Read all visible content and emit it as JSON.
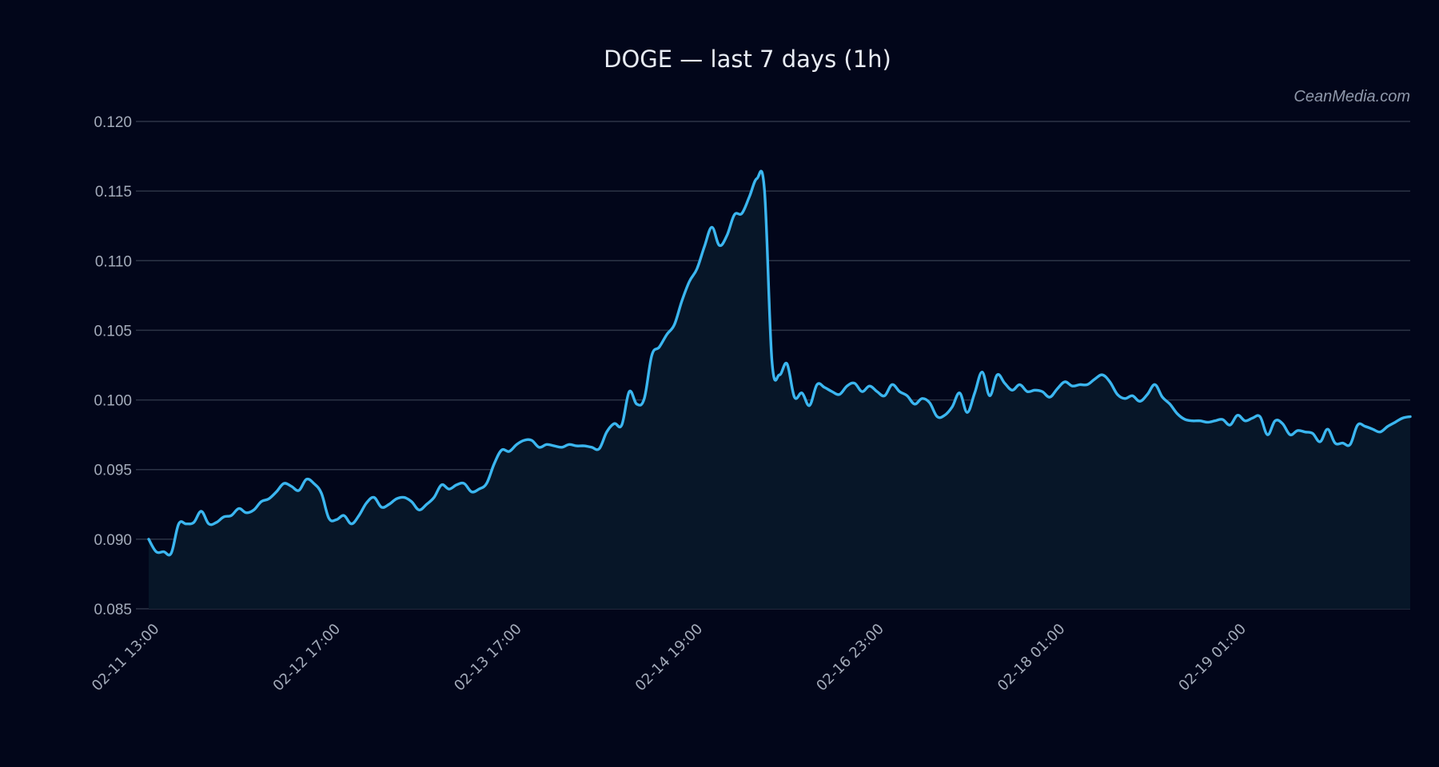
{
  "chart_data": {
    "type": "area",
    "title": "DOGE — last 7 days (1h)",
    "watermark": "CeanMedia.com",
    "xlabel": "",
    "ylabel": "",
    "ylim": [
      0.085,
      0.12
    ],
    "yticks": [
      "0.085",
      "0.090",
      "0.095",
      "0.100",
      "0.105",
      "0.110",
      "0.115",
      "0.120"
    ],
    "xticks": [
      {
        "label": "02-11 13:00",
        "index": 0
      },
      {
        "label": "02-12 17:00",
        "index": 28
      },
      {
        "label": "02-13 17:00",
        "index": 56
      },
      {
        "label": "02-14 19:00",
        "index": 84
      },
      {
        "label": "02-16 23:00",
        "index": 112
      },
      {
        "label": "02-18 01:00",
        "index": 140
      },
      {
        "label": "02-19 01:00",
        "index": 168
      }
    ],
    "grid": true,
    "legend": null,
    "colors": {
      "line": "#3bb6f0",
      "fill": "#071628",
      "background": "#02061a",
      "grid": "#2c3446"
    },
    "series": [
      {
        "name": "DOGE",
        "values": [
          0.09,
          0.0891,
          0.0891,
          0.089,
          0.0911,
          0.0911,
          0.0912,
          0.092,
          0.0911,
          0.0912,
          0.0916,
          0.0917,
          0.0922,
          0.0919,
          0.0921,
          0.0927,
          0.0929,
          0.0934,
          0.094,
          0.0938,
          0.0935,
          0.0943,
          0.094,
          0.0933,
          0.0915,
          0.0914,
          0.0917,
          0.0911,
          0.0917,
          0.0926,
          0.093,
          0.0923,
          0.0925,
          0.0929,
          0.093,
          0.0927,
          0.0921,
          0.0925,
          0.093,
          0.0939,
          0.0936,
          0.0939,
          0.094,
          0.0934,
          0.0936,
          0.094,
          0.0954,
          0.0964,
          0.0963,
          0.0968,
          0.0971,
          0.0971,
          0.0966,
          0.0968,
          0.0967,
          0.0966,
          0.0968,
          0.0967,
          0.0967,
          0.0966,
          0.0965,
          0.0977,
          0.0983,
          0.0982,
          0.1006,
          0.0997,
          0.1001,
          0.1032,
          0.1038,
          0.1047,
          0.1054,
          0.1071,
          0.1085,
          0.1094,
          0.111,
          0.1124,
          0.1111,
          0.1118,
          0.1133,
          0.1134,
          0.1146,
          0.1159,
          0.1151,
          0.1028,
          0.1018,
          0.1026,
          0.1002,
          0.1005,
          0.0996,
          0.1011,
          0.1009,
          0.1006,
          0.1004,
          0.101,
          0.1012,
          0.1006,
          0.101,
          0.1006,
          0.1003,
          0.1011,
          0.1006,
          0.1003,
          0.0997,
          0.1001,
          0.0998,
          0.0988,
          0.0989,
          0.0995,
          0.1005,
          0.0991,
          0.1005,
          0.102,
          0.1003,
          0.1018,
          0.1012,
          0.1007,
          0.1011,
          0.1006,
          0.1007,
          0.1006,
          0.1002,
          0.1008,
          0.1013,
          0.101,
          0.1011,
          0.1011,
          0.1015,
          0.1018,
          0.1013,
          0.1004,
          0.1001,
          0.1003,
          0.0999,
          0.1004,
          0.1011,
          0.1002,
          0.0997,
          0.099,
          0.0986,
          0.0985,
          0.0985,
          0.0984,
          0.0985,
          0.0986,
          0.0982,
          0.0989,
          0.0985,
          0.0987,
          0.0988,
          0.0975,
          0.0985,
          0.0983,
          0.0975,
          0.0978,
          0.0977,
          0.0976,
          0.097,
          0.0979,
          0.0969,
          0.0969,
          0.0968,
          0.0982,
          0.0981,
          0.0979,
          0.0977,
          0.0981,
          0.0984,
          0.0987,
          0.0988
        ]
      }
    ]
  }
}
